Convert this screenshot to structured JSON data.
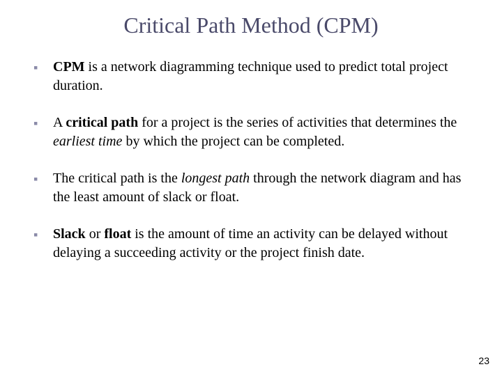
{
  "title": "Critical Path Method (CPM)",
  "title_color": "#4a4a6a",
  "title_fontsize": 32,
  "bullet_color": "#8a8aa8",
  "body_fontsize": 20,
  "background_color": "#ffffff",
  "page_number": "23",
  "bullets": [
    {
      "segments": [
        {
          "text": "CPM",
          "bold": true
        },
        {
          "text": " is a network diagramming technique used to predict total project duration."
        }
      ]
    },
    {
      "segments": [
        {
          "text": "A "
        },
        {
          "text": "critical path",
          "bold": true
        },
        {
          "text": " for a project is the series of activities that determines the "
        },
        {
          "text": "earliest time",
          "italic": true
        },
        {
          "text": " by which the project can be completed."
        }
      ]
    },
    {
      "segments": [
        {
          "text": "The critical path is the "
        },
        {
          "text": "longest path",
          "italic": true
        },
        {
          "text": " through the network diagram and has the least amount of slack or float."
        }
      ]
    },
    {
      "segments": [
        {
          "text": "Slack",
          "bold": true
        },
        {
          "text": " or "
        },
        {
          "text": "float",
          "bold": true
        },
        {
          "text": " is the amount of time an activity can be delayed without delaying a succeeding activity or the project finish date."
        }
      ]
    }
  ]
}
